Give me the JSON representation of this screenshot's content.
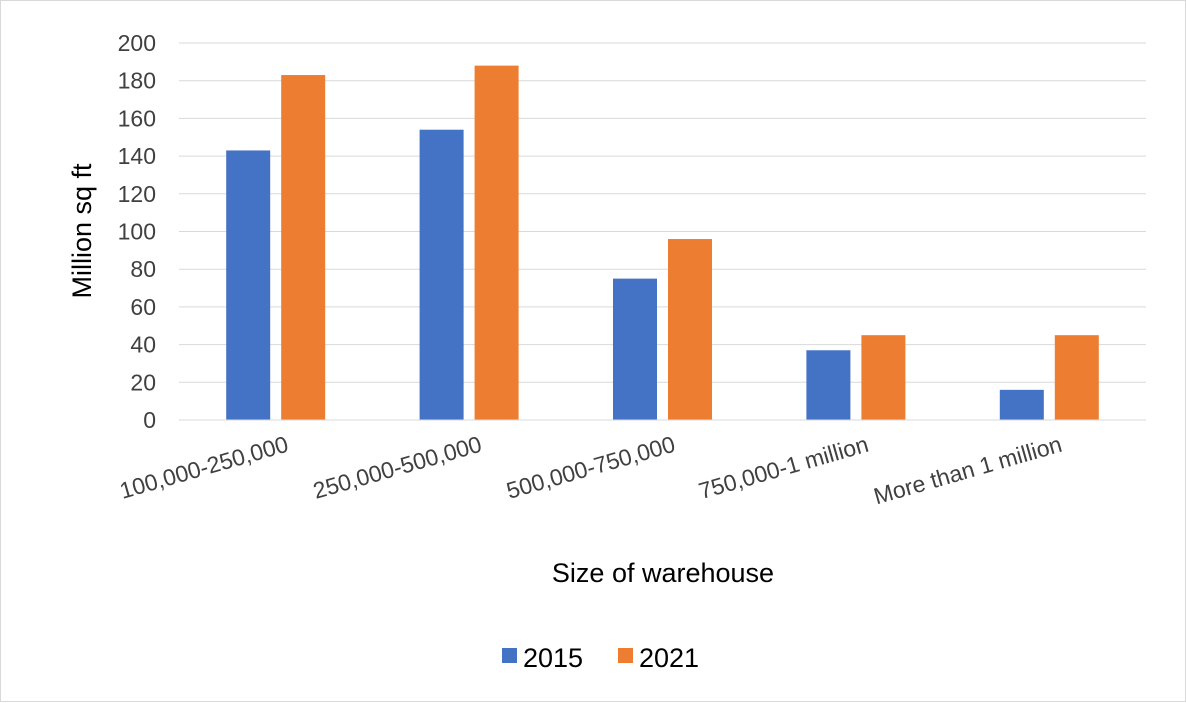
{
  "chart_data": {
    "type": "bar",
    "categories": [
      "100,000-250,000",
      "250,000-500,000",
      "500,000-750,000",
      "750,000-1 million",
      "More than 1 million"
    ],
    "series": [
      {
        "name": "2015",
        "values": [
          143,
          154,
          75,
          37,
          16
        ],
        "color": "#4472C4"
      },
      {
        "name": "2021",
        "values": [
          183,
          188,
          96,
          45,
          45
        ],
        "color": "#ED7D31"
      }
    ],
    "xlabel": "Size of warehouse",
    "ylabel": "Million sq ft",
    "ylim": [
      0,
      200
    ],
    "yticks": [
      "0",
      "20",
      "40",
      "60",
      "80",
      "100",
      "120",
      "140",
      "160",
      "180",
      "200"
    ],
    "grid": true,
    "legend_position": "bottom"
  }
}
